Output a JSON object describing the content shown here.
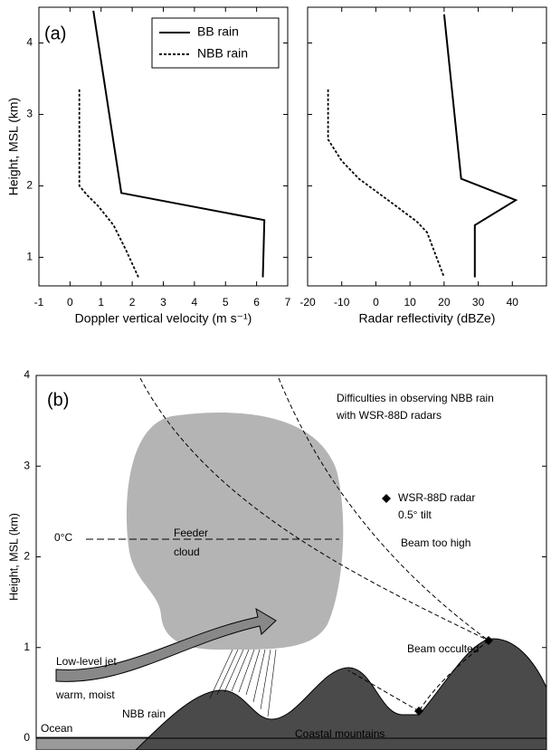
{
  "chart_data": [
    {
      "type": "line",
      "label": "(a)",
      "xlabel": "Doppler vertical velocity (m s⁻¹)",
      "ylabel": "Height, MSL (km)",
      "xlim": [
        -1,
        7
      ],
      "xticks": [
        -1,
        0,
        1,
        2,
        3,
        4,
        5,
        6,
        7
      ],
      "ylim": [
        0.6,
        4.5
      ],
      "yticks": [
        1,
        2,
        3,
        4
      ],
      "legend": "upper right",
      "series": [
        {
          "name": "BB rain",
          "color": "#000000",
          "style": "solid",
          "x": [
            0.75,
            1.65,
            6.25,
            6.2
          ],
          "values": [
            4.45,
            1.9,
            1.52,
            0.72
          ]
        },
        {
          "name": "NBB rain",
          "color": "#000000",
          "style": "dotted",
          "x": [
            0.3,
            0.3,
            0.55,
            0.9,
            1.4,
            1.8,
            2.2
          ],
          "values": [
            3.35,
            2.0,
            1.87,
            1.72,
            1.45,
            1.1,
            0.72
          ]
        }
      ]
    },
    {
      "type": "line",
      "xlabel": "Radar reflectivity (dBZe)",
      "xlim": [
        -20,
        50
      ],
      "xticks": [
        -20,
        -10,
        0,
        10,
        20,
        30,
        40
      ],
      "ylim": [
        0.6,
        4.5
      ],
      "yticks": [
        1,
        2,
        3,
        4
      ],
      "series": [
        {
          "color": "#000000",
          "style": "solid",
          "x": [
            20,
            25,
            41,
            29,
            29
          ],
          "values": [
            4.4,
            2.1,
            1.8,
            1.45,
            0.72
          ]
        },
        {
          "color": "#000000",
          "style": "dotted",
          "x": [
            -14,
            -14,
            -10,
            -5,
            5,
            12,
            15,
            20
          ],
          "values": [
            3.35,
            2.65,
            2.35,
            2.1,
            1.75,
            1.5,
            1.35,
            0.72
          ]
        }
      ]
    },
    {
      "type": "schematic",
      "label": "(b)",
      "ylabel": "Height, MSL (km)",
      "ylim": [
        0,
        4
      ],
      "yticks": [
        0,
        1,
        2,
        3,
        4
      ],
      "annotations": {
        "heading_1": "Difficulties in observing NBB rain",
        "heading_2": "with WSR-88D radars",
        "radar_1": "WSR-88D radar",
        "radar_2": "0.5° tilt",
        "freezing": "0°C",
        "beam_high": "Beam too high",
        "feeder_1": "Feeder",
        "feeder_2": "cloud",
        "jet_1": "Low-level jet",
        "jet_2": "warm, moist",
        "occulted": "Beam occulted",
        "nbb": "NBB rain",
        "ocean": "Ocean",
        "mountains": "Coastal mountains"
      }
    }
  ]
}
